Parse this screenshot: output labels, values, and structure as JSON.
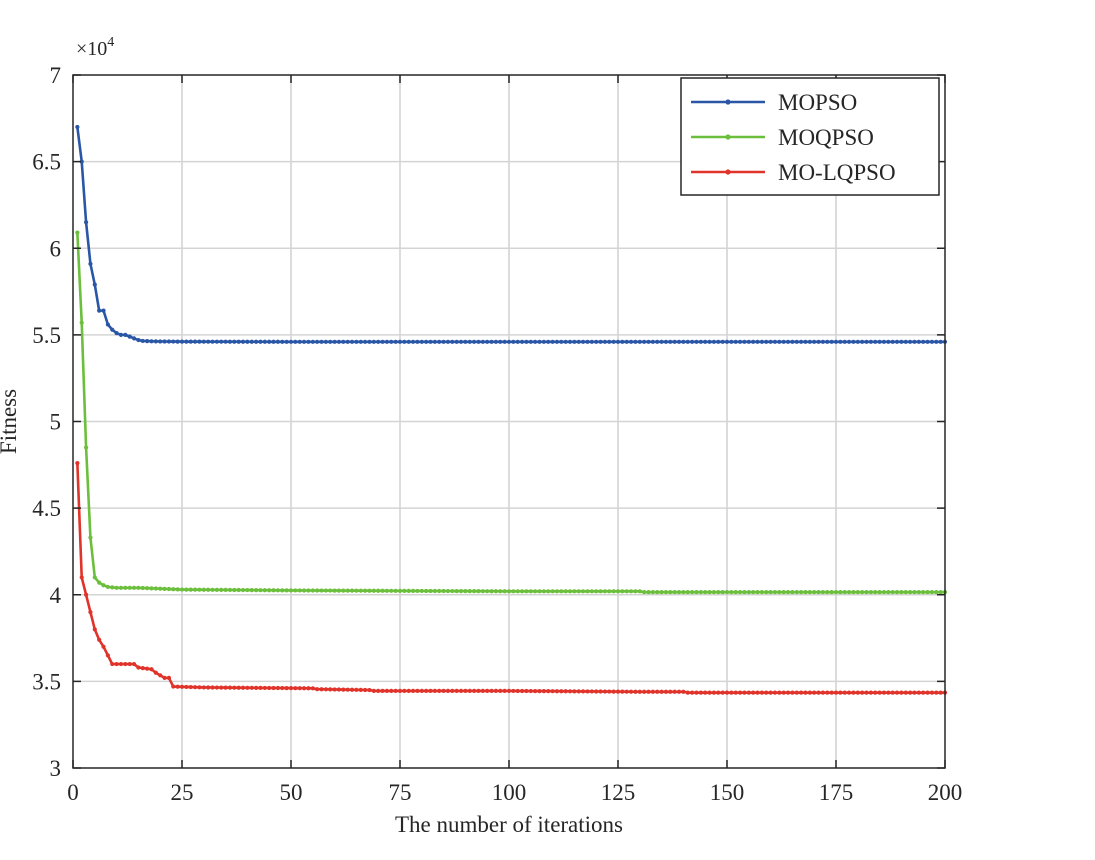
{
  "chart_data": {
    "type": "line",
    "xlabel": "The number of iterations",
    "ylabel": "Fitness",
    "y_multiplier_base": "×10",
    "y_multiplier_exp": "4",
    "xlim": [
      0,
      200
    ],
    "ylim": [
      3,
      7
    ],
    "xticks": [
      0,
      25,
      50,
      75,
      100,
      125,
      150,
      175,
      200
    ],
    "yticks": [
      3,
      3.5,
      4,
      4.5,
      5,
      5.5,
      6,
      6.5,
      7
    ],
    "xtick_labels": [
      "0",
      "25",
      "50",
      "75",
      "100",
      "125",
      "150",
      "175",
      "200"
    ],
    "ytick_labels": [
      "3",
      "3.5",
      "4",
      "4.5",
      "5",
      "5.5",
      "6",
      "6.5",
      "7"
    ],
    "grid": true,
    "legend_position": "top-right",
    "series": [
      {
        "name": "MOPSO",
        "color": "#2a56a6",
        "points": [
          [
            1,
            6.7
          ],
          [
            2,
            6.5
          ],
          [
            3,
            6.15
          ],
          [
            4,
            5.91
          ],
          [
            5,
            5.79
          ],
          [
            6,
            5.64
          ],
          [
            7,
            5.64
          ],
          [
            8,
            5.56
          ],
          [
            9,
            5.53
          ],
          [
            10,
            5.51
          ],
          [
            11,
            5.5
          ],
          [
            12,
            5.5
          ],
          [
            13,
            5.49
          ],
          [
            14,
            5.48
          ],
          [
            15,
            5.47
          ],
          [
            16,
            5.465
          ],
          [
            18,
            5.463
          ],
          [
            20,
            5.462
          ],
          [
            25,
            5.461
          ],
          [
            50,
            5.46
          ],
          [
            100,
            5.46
          ],
          [
            150,
            5.46
          ],
          [
            200,
            5.46
          ]
        ]
      },
      {
        "name": "MOQPSO",
        "color": "#6cbf3c",
        "points": [
          [
            1,
            6.09
          ],
          [
            2,
            5.57
          ],
          [
            3,
            4.85
          ],
          [
            4,
            4.33
          ],
          [
            5,
            4.1
          ],
          [
            6,
            4.07
          ],
          [
            7,
            4.055
          ],
          [
            8,
            4.045
          ],
          [
            10,
            4.04
          ],
          [
            15,
            4.04
          ],
          [
            20,
            4.035
          ],
          [
            25,
            4.03
          ],
          [
            50,
            4.025
          ],
          [
            100,
            4.02
          ],
          [
            130,
            4.02
          ],
          [
            131,
            4.015
          ],
          [
            150,
            4.015
          ],
          [
            200,
            4.015
          ]
        ]
      },
      {
        "name": "MO-LQPSO",
        "color": "#e0332a",
        "points": [
          [
            1,
            4.76
          ],
          [
            2,
            4.1
          ],
          [
            3,
            4.0
          ],
          [
            4,
            3.9
          ],
          [
            5,
            3.8
          ],
          [
            6,
            3.74
          ],
          [
            7,
            3.7
          ],
          [
            8,
            3.65
          ],
          [
            9,
            3.6
          ],
          [
            14,
            3.6
          ],
          [
            15,
            3.58
          ],
          [
            18,
            3.57
          ],
          [
            19,
            3.55
          ],
          [
            21,
            3.52
          ],
          [
            22,
            3.52
          ],
          [
            23,
            3.47
          ],
          [
            30,
            3.465
          ],
          [
            55,
            3.46
          ],
          [
            56,
            3.455
          ],
          [
            68,
            3.45
          ],
          [
            69,
            3.445
          ],
          [
            100,
            3.445
          ],
          [
            130,
            3.44
          ],
          [
            140,
            3.44
          ],
          [
            141,
            3.435
          ],
          [
            200,
            3.435
          ]
        ]
      }
    ]
  }
}
